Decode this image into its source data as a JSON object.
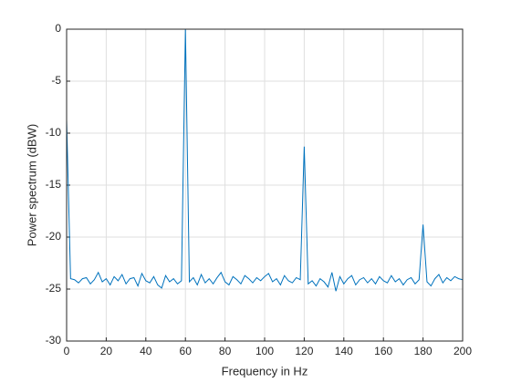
{
  "chart_data": {
    "type": "line",
    "xlabel": "Frequency in Hz",
    "ylabel": "Power spectrum (dBW)",
    "x": [
      0,
      2,
      4,
      6,
      8,
      10,
      12,
      14,
      16,
      18,
      20,
      22,
      24,
      26,
      28,
      30,
      32,
      34,
      36,
      38,
      40,
      42,
      44,
      46,
      48,
      50,
      52,
      54,
      56,
      58,
      60,
      62,
      64,
      66,
      68,
      70,
      72,
      74,
      76,
      78,
      80,
      82,
      84,
      86,
      88,
      90,
      92,
      94,
      96,
      98,
      100,
      102,
      104,
      106,
      108,
      110,
      112,
      114,
      116,
      118,
      120,
      122,
      124,
      126,
      128,
      130,
      132,
      134,
      136,
      138,
      140,
      142,
      144,
      146,
      148,
      150,
      152,
      154,
      156,
      158,
      160,
      162,
      164,
      166,
      168,
      170,
      172,
      174,
      176,
      178,
      180,
      182,
      184,
      186,
      188,
      190,
      192,
      194,
      196,
      198,
      200
    ],
    "series": [
      {
        "color": "#0072bd",
        "values": [
          -8.7,
          -24.0,
          -24.1,
          -24.4,
          -24.0,
          -23.9,
          -24.5,
          -24.1,
          -23.4,
          -24.3,
          -24.0,
          -24.6,
          -23.8,
          -24.2,
          -23.6,
          -24.5,
          -24.0,
          -23.9,
          -24.7,
          -23.5,
          -24.2,
          -24.4,
          -23.8,
          -24.6,
          -24.9,
          -23.7,
          -24.3,
          -24.0,
          -24.5,
          -24.2,
          0,
          -24.3,
          -23.9,
          -24.6,
          -23.6,
          -24.4,
          -24.0,
          -24.5,
          -23.9,
          -23.4,
          -24.3,
          -24.6,
          -23.8,
          -24.1,
          -24.5,
          -23.7,
          -24.0,
          -24.4,
          -23.9,
          -24.2,
          -23.8,
          -23.5,
          -24.3,
          -24.0,
          -24.6,
          -23.7,
          -24.2,
          -24.4,
          -23.9,
          -24.1,
          -11.3,
          -24.5,
          -24.2,
          -24.7,
          -24.0,
          -24.3,
          -24.8,
          -23.4,
          -25.2,
          -23.8,
          -24.5,
          -24.0,
          -23.7,
          -24.6,
          -24.1,
          -23.9,
          -24.4,
          -24.0,
          -24.5,
          -23.8,
          -24.2,
          -24.4,
          -23.7,
          -24.3,
          -24.0,
          -24.6,
          -24.1,
          -23.9,
          -24.5,
          -24.1,
          -18.8,
          -24.3,
          -24.7,
          -24.0,
          -23.6,
          -24.4,
          -23.9,
          -24.2,
          -23.8,
          -24.0,
          -24.1
        ]
      }
    ],
    "xlim": [
      0,
      200
    ],
    "xticks": [
      0,
      20,
      40,
      60,
      80,
      100,
      120,
      140,
      160,
      180,
      200
    ],
    "ylim": [
      -30,
      0
    ],
    "yticks": [
      -30,
      -25,
      -20,
      -15,
      -10,
      -5,
      0
    ],
    "grid": true
  }
}
